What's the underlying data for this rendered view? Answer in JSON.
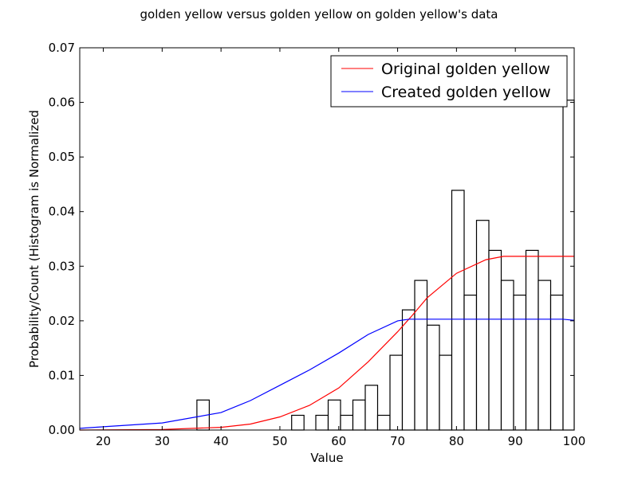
{
  "chart_data": {
    "type": "bar",
    "title": "golden yellow versus golden yellow on golden yellow's data",
    "xlabel": "Value",
    "ylabel": "Probability/Count (Histogram is Normalized",
    "xlim": [
      16,
      100
    ],
    "ylim": [
      0,
      0.07
    ],
    "xticks": [
      "20",
      "30",
      "40",
      "50",
      "60",
      "70",
      "80",
      "90",
      "100"
    ],
    "yticks": [
      "0.00",
      "0.01",
      "0.02",
      "0.03",
      "0.04",
      "0.05",
      "0.06",
      "0.07"
    ],
    "grid": false,
    "legend_position": "top-right",
    "histogram": {
      "bins": [
        {
          "x0": 35.9,
          "x1": 38.0,
          "value": 0.0055
        },
        {
          "x0": 52.0,
          "x1": 54.1,
          "value": 0.0027
        },
        {
          "x0": 56.1,
          "x1": 58.2,
          "value": 0.0027
        },
        {
          "x0": 58.2,
          "x1": 60.3,
          "value": 0.0055
        },
        {
          "x0": 60.3,
          "x1": 62.4,
          "value": 0.0027
        },
        {
          "x0": 62.4,
          "x1": 64.5,
          "value": 0.0055
        },
        {
          "x0": 64.5,
          "x1": 66.6,
          "value": 0.0082
        },
        {
          "x0": 66.6,
          "x1": 68.7,
          "value": 0.0027
        },
        {
          "x0": 68.7,
          "x1": 70.8,
          "value": 0.0137
        },
        {
          "x0": 70.8,
          "x1": 72.9,
          "value": 0.022
        },
        {
          "x0": 72.9,
          "x1": 75.0,
          "value": 0.0274
        },
        {
          "x0": 75.0,
          "x1": 77.1,
          "value": 0.0192
        },
        {
          "x0": 77.1,
          "x1": 79.2,
          "value": 0.0137
        },
        {
          "x0": 79.2,
          "x1": 81.3,
          "value": 0.0439
        },
        {
          "x0": 81.3,
          "x1": 83.4,
          "value": 0.0247
        },
        {
          "x0": 83.4,
          "x1": 85.5,
          "value": 0.0384
        },
        {
          "x0": 85.5,
          "x1": 87.6,
          "value": 0.0329
        },
        {
          "x0": 87.6,
          "x1": 89.7,
          "value": 0.0274
        },
        {
          "x0": 89.7,
          "x1": 91.8,
          "value": 0.0247
        },
        {
          "x0": 91.8,
          "x1": 93.9,
          "value": 0.0329
        },
        {
          "x0": 93.9,
          "x1": 96.0,
          "value": 0.0274
        },
        {
          "x0": 96.0,
          "x1": 98.1,
          "value": 0.0247
        },
        {
          "x0": 98.1,
          "x1": 100.2,
          "value": 0.0604
        }
      ]
    },
    "series": [
      {
        "name": "Original golden yellow",
        "color": "#ff0000",
        "x": [
          16,
          30,
          40,
          45,
          50,
          55,
          60,
          65,
          70,
          72.5,
          75,
          80,
          85,
          88,
          90,
          100
        ],
        "y": [
          0.0,
          0.0001,
          0.0005,
          0.0011,
          0.0024,
          0.0045,
          0.0077,
          0.0125,
          0.018,
          0.021,
          0.0242,
          0.0287,
          0.0312,
          0.0318,
          0.0318,
          0.0318
        ]
      },
      {
        "name": "Created golden yellow",
        "color": "#0000ff",
        "x": [
          16,
          20,
          30,
          40,
          45,
          50,
          55,
          60,
          65,
          70,
          72,
          75,
          80,
          90,
          98,
          100
        ],
        "y": [
          0.0003,
          0.0006,
          0.0013,
          0.0032,
          0.0054,
          0.0082,
          0.011,
          0.0141,
          0.0175,
          0.02,
          0.0203,
          0.0203,
          0.0203,
          0.0203,
          0.0203,
          0.0201
        ]
      }
    ]
  }
}
